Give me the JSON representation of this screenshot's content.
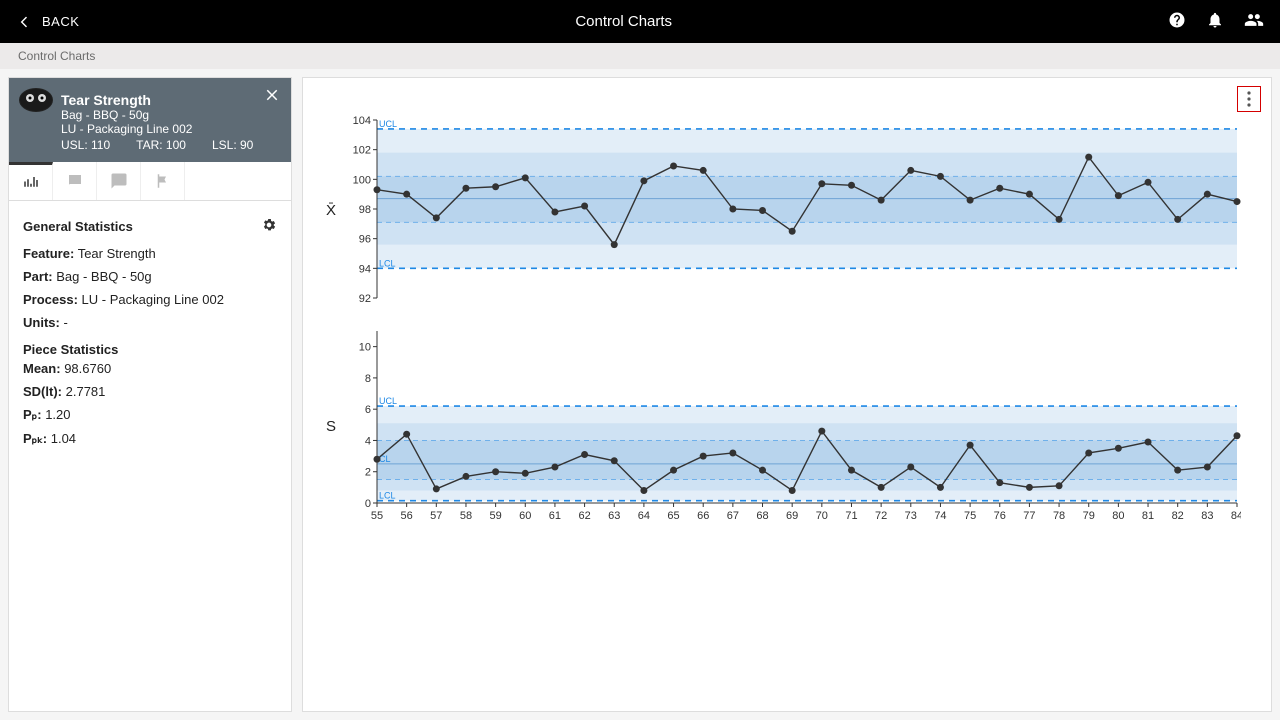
{
  "header": {
    "back_label": "BACK",
    "title": "Control Charts"
  },
  "breadcrumb": "Control Charts",
  "side": {
    "title": "Tear Strength",
    "subtitle": "Bag - BBQ - 50g",
    "line": "LU - Packaging Line 002",
    "usl_label": "USL: 110",
    "tar_label": "TAR: 100",
    "lsl_label": "LSL: 90"
  },
  "general": {
    "title": "General Statistics",
    "feature_l": "Feature:",
    "feature_v": "Tear Strength",
    "part_l": "Part:",
    "part_v": "Bag - BBQ - 50g",
    "process_l": "Process:",
    "process_v": "LU - Packaging Line 002",
    "units_l": "Units:",
    "units_v": "-"
  },
  "piece": {
    "title": "Piece Statistics",
    "mean_l": "Mean:",
    "mean_v": "98.6760",
    "sd_l": "SD(lt):",
    "sd_v": "2.7781",
    "pp_l": "Pₚ:",
    "pp_v": "1.20",
    "ppk_l": "Pₚₖ:",
    "ppk_v": "1.04"
  },
  "xchart": {
    "ylabel": "X̄",
    "ymin": 92,
    "ymax": 104,
    "yticks": [
      92,
      94,
      96,
      98,
      100,
      102,
      104
    ],
    "ucl": 103.4,
    "lcl": 94.0,
    "cl": 98.7,
    "band3": [
      97.1,
      100.2
    ],
    "band2": [
      95.6,
      101.8
    ],
    "band1": [
      94.0,
      103.4
    ],
    "ucl_label": "UCL",
    "lcl_label": "LCL",
    "values": [
      99.3,
      99.0,
      97.4,
      99.4,
      99.5,
      100.1,
      97.8,
      98.2,
      95.6,
      99.9,
      100.9,
      100.6,
      98.0,
      97.9,
      96.5,
      99.7,
      99.6,
      98.6,
      100.6,
      100.2,
      98.6,
      99.4,
      99.0,
      97.3,
      101.5,
      98.9,
      99.8,
      97.3,
      99.0,
      98.5
    ],
    "plot_bg": "#ffffff"
  },
  "schart": {
    "ylabel": "S",
    "ymin": 0,
    "ymax": 11,
    "yticks": [
      0,
      2,
      4,
      6,
      8,
      10
    ],
    "ucl": 6.2,
    "lcl": 0.15,
    "cl": 2.5,
    "band3": [
      1.5,
      4.0
    ],
    "band2": [
      0.8,
      5.1
    ],
    "band1": [
      0.15,
      6.2
    ],
    "ucl_label": "UCL",
    "lcl_label": "LCL",
    "cl_label": "CL",
    "values": [
      2.8,
      4.4,
      0.9,
      1.7,
      2.0,
      1.9,
      2.3,
      3.1,
      2.7,
      0.8,
      2.1,
      3.0,
      3.2,
      2.1,
      0.8,
      4.6,
      2.1,
      1.0,
      2.3,
      1.0,
      3.7,
      1.3,
      1.0,
      1.1,
      3.2,
      3.5,
      3.9,
      2.1,
      2.3,
      4.3
    ]
  },
  "xaxis": {
    "start": 55,
    "end": 84
  },
  "colors": {
    "dash": "#1e88e5",
    "band1": "#e3eef8",
    "band2": "#cfe2f3",
    "band3": "#b8d4ed",
    "point": "#333333"
  }
}
